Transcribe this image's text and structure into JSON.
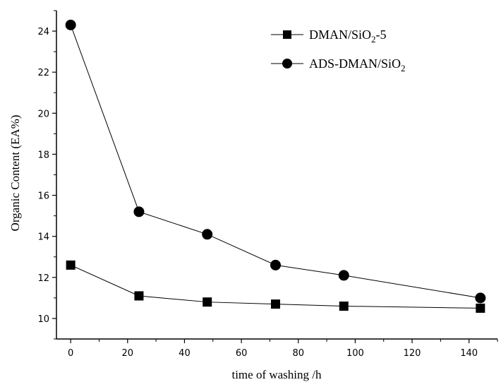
{
  "chart_data": {
    "type": "line",
    "xlabel": "time of washing /h",
    "ylabel": "Organic Content (EA%)",
    "xlim": [
      -5,
      150
    ],
    "ylim": [
      9,
      25
    ],
    "xticks": [
      0,
      20,
      40,
      60,
      80,
      100,
      120,
      140
    ],
    "yticks": [
      10,
      12,
      14,
      16,
      18,
      20,
      22,
      24
    ],
    "grid": false,
    "legend_position": "top-right",
    "series": [
      {
        "name": "DMAN/SiO2-5",
        "marker": "square",
        "x": [
          0,
          24,
          48,
          72,
          96,
          144
        ],
        "y": [
          12.6,
          11.1,
          10.8,
          10.7,
          10.6,
          10.5
        ]
      },
      {
        "name": "ADS-DMAN/SiO2",
        "marker": "circle",
        "x": [
          0,
          24,
          48,
          72,
          96,
          144
        ],
        "y": [
          24.3,
          15.2,
          14.1,
          12.6,
          12.1,
          11.0
        ]
      }
    ],
    "legend": [
      {
        "prefix": "DMAN/SiO",
        "sub": "2",
        "suffix": "-5"
      },
      {
        "prefix": "ADS-DMAN/SiO",
        "sub": "2",
        "suffix": ""
      }
    ]
  }
}
